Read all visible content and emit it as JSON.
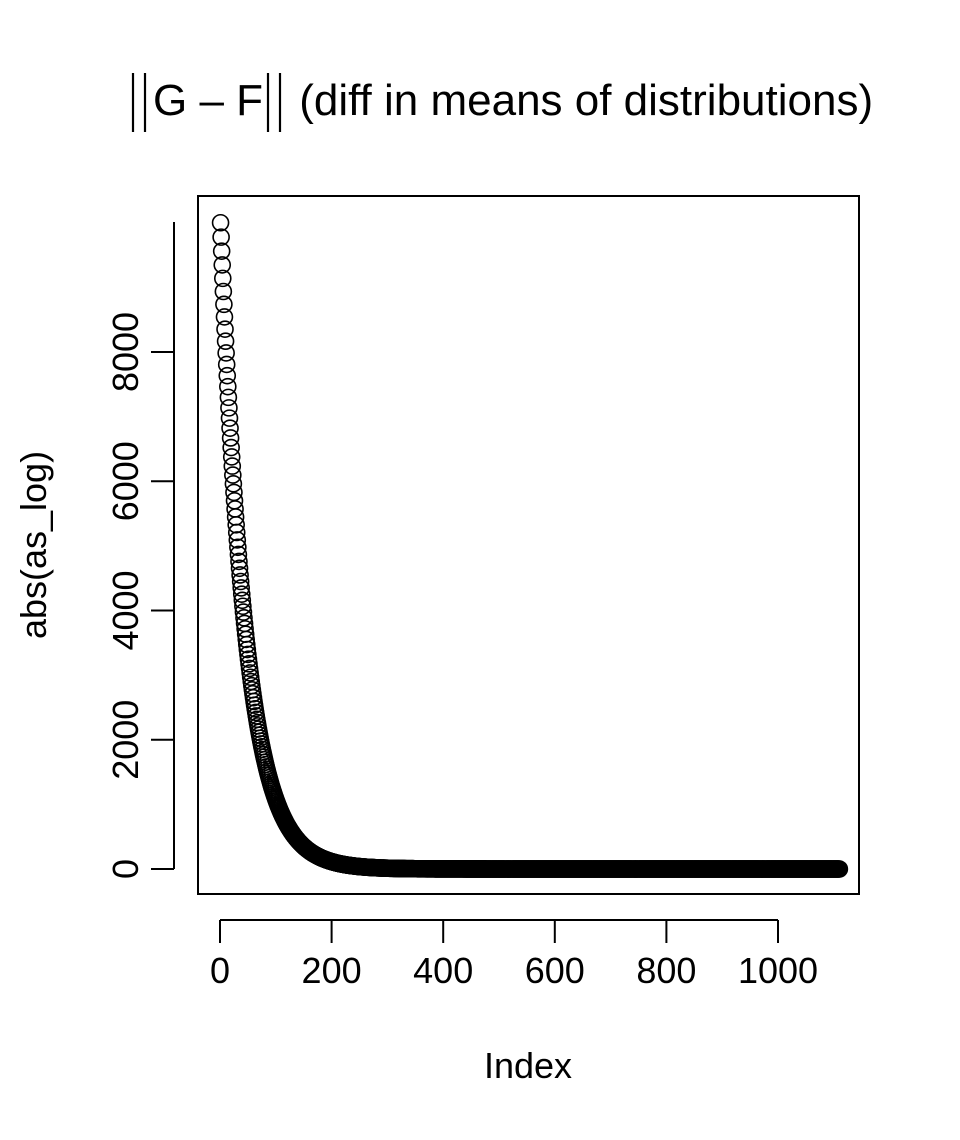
{
  "chart_data": {
    "type": "scatter",
    "title": "||G – F|| (diff in means of distributions)",
    "title_parts": {
      "norm_bar": "||",
      "expression": "G – F",
      "suffix": " (diff in means of distributions)"
    },
    "xlabel": "Index",
    "ylabel": "abs(as_log)",
    "xlim": [
      0,
      1110
    ],
    "ylim": [
      -400,
      10400
    ],
    "x_ticks": [
      0,
      200,
      400,
      600,
      800,
      1000
    ],
    "x_tick_labels": [
      "0",
      "200",
      "400",
      "600",
      "800",
      "1000"
    ],
    "y_ticks": [
      0,
      2000,
      4000,
      6000,
      8000
    ],
    "y_tick_labels": [
      "0",
      "2000",
      "4000",
      "6000",
      "8000"
    ],
    "grid": false,
    "legend": "none",
    "marker": "open-circle",
    "series": [
      {
        "n_points": 1110,
        "x_start": 1,
        "x_step": 1,
        "model": "exponential-decay",
        "start_value": 10000,
        "decay_rate_per_index": 0.0225,
        "end_value": 0,
        "sample_points": [
          {
            "x": 1,
            "y": 10000
          },
          {
            "x": 25,
            "y": 5800
          },
          {
            "x": 50,
            "y": 3300
          },
          {
            "x": 75,
            "y": 1850
          },
          {
            "x": 100,
            "y": 1050
          },
          {
            "x": 150,
            "y": 340
          },
          {
            "x": 200,
            "y": 110
          },
          {
            "x": 300,
            "y": 12
          },
          {
            "x": 400,
            "y": 1
          },
          {
            "x": 1110,
            "y": 0
          }
        ]
      }
    ],
    "colors": {
      "points": "#000000",
      "axes": "#000000",
      "background": "#ffffff"
    }
  }
}
